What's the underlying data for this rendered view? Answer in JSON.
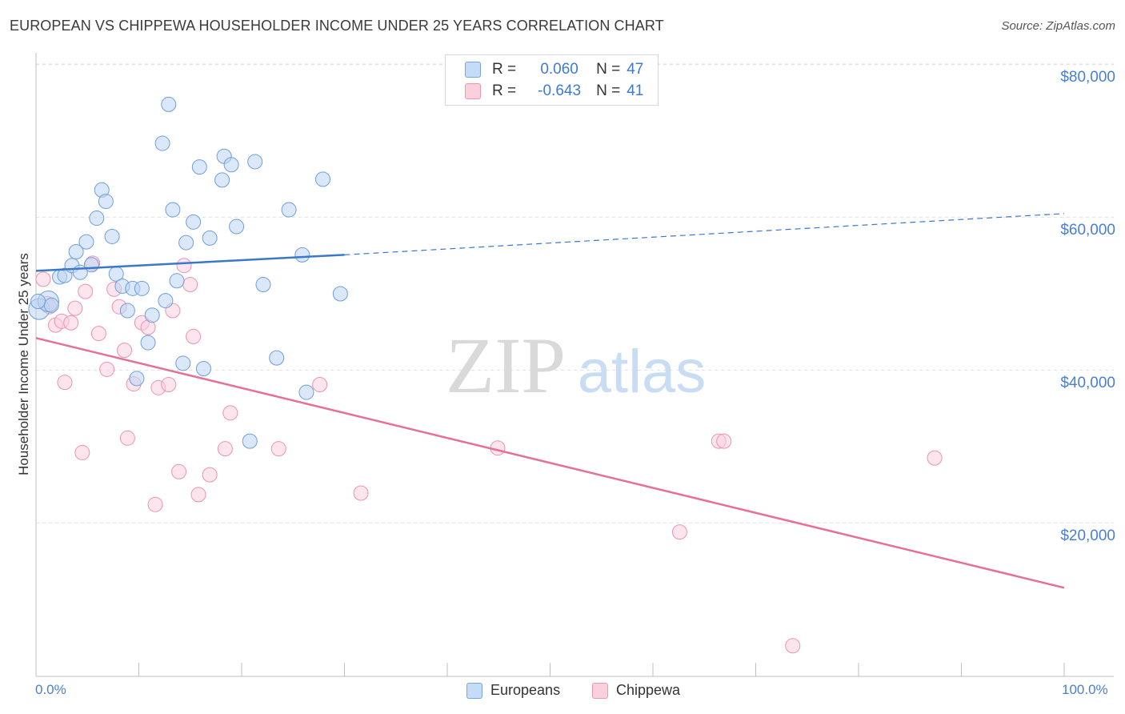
{
  "title": "EUROPEAN VS CHIPPEWA HOUSEHOLDER INCOME UNDER 25 YEARS CORRELATION CHART",
  "source": "Source: ZipAtlas.com",
  "watermark": {
    "zip": "ZIP",
    "atlas": "atlas"
  },
  "colors": {
    "europeans": "#a8c8f0",
    "europeans_line": "#3a78c9",
    "chippewa": "#f5b5c8",
    "chippewa_line": "#e66f97",
    "tick_text": "#4a7fd0"
  },
  "legend": {
    "rows": [
      {
        "r_label": "R =",
        "r_value": "0.060",
        "n_label": "N =",
        "n_value": "47"
      },
      {
        "r_label": "R =",
        "r_value": "-0.643",
        "n_label": "N =",
        "n_value": "41"
      }
    ]
  },
  "bottom_legend": {
    "europeans": "Europeans",
    "chippewa": "Chippewa"
  },
  "chart_data": {
    "type": "scatter",
    "title": "EUROPEAN VS CHIPPEWA HOUSEHOLDER INCOME UNDER 25 YEARS CORRELATION CHART",
    "xlabel": "",
    "ylabel": "Householder Income Under 25 years",
    "xlim": [
      0,
      100
    ],
    "ylim": [
      0,
      85000
    ],
    "x_tick_labels": [
      "0.0%",
      "100.0%"
    ],
    "y_ticks": [
      20000,
      40000,
      60000,
      80000
    ],
    "y_tick_labels": [
      "$20,000",
      "$40,000",
      "$60,000",
      "$80,000"
    ],
    "grid": true,
    "series": [
      {
        "name": "Europeans",
        "r": 0.06,
        "n": 47,
        "trend": {
          "x": [
            0,
            30
          ],
          "y": [
            53000,
            55100
          ],
          "dashed_to": [
            100,
            60500
          ]
        },
        "points": [
          {
            "x": 0.3,
            "y": 48000,
            "big": true
          },
          {
            "x": 1.2,
            "y": 49000,
            "big": true
          },
          {
            "x": 1.5,
            "y": 48500
          },
          {
            "x": 2.3,
            "y": 52200
          },
          {
            "x": 2.8,
            "y": 52400
          },
          {
            "x": 3.5,
            "y": 53700
          },
          {
            "x": 3.9,
            "y": 55500
          },
          {
            "x": 4.3,
            "y": 52800
          },
          {
            "x": 4.9,
            "y": 56800
          },
          {
            "x": 5.4,
            "y": 53800
          },
          {
            "x": 5.9,
            "y": 59900
          },
          {
            "x": 6.4,
            "y": 63600
          },
          {
            "x": 6.8,
            "y": 62100
          },
          {
            "x": 7.4,
            "y": 57500
          },
          {
            "x": 7.8,
            "y": 52600
          },
          {
            "x": 8.4,
            "y": 51000
          },
          {
            "x": 8.9,
            "y": 47800
          },
          {
            "x": 9.4,
            "y": 50700
          },
          {
            "x": 9.8,
            "y": 38900
          },
          {
            "x": 10.3,
            "y": 50700
          },
          {
            "x": 10.9,
            "y": 43600
          },
          {
            "x": 11.3,
            "y": 47200
          },
          {
            "x": 12.3,
            "y": 69700
          },
          {
            "x": 12.6,
            "y": 49100
          },
          {
            "x": 12.9,
            "y": 74800
          },
          {
            "x": 13.3,
            "y": 61000
          },
          {
            "x": 13.7,
            "y": 51700
          },
          {
            "x": 14.3,
            "y": 40900
          },
          {
            "x": 14.6,
            "y": 56700
          },
          {
            "x": 15.3,
            "y": 59400
          },
          {
            "x": 15.9,
            "y": 66600
          },
          {
            "x": 16.3,
            "y": 40200
          },
          {
            "x": 16.9,
            "y": 57300
          },
          {
            "x": 18.1,
            "y": 64900
          },
          {
            "x": 18.3,
            "y": 68000
          },
          {
            "x": 19.0,
            "y": 66900
          },
          {
            "x": 19.5,
            "y": 58800
          },
          {
            "x": 20.8,
            "y": 30700
          },
          {
            "x": 21.3,
            "y": 67300
          },
          {
            "x": 22.1,
            "y": 51200
          },
          {
            "x": 23.4,
            "y": 41600
          },
          {
            "x": 24.6,
            "y": 61000
          },
          {
            "x": 25.9,
            "y": 55100
          },
          {
            "x": 26.3,
            "y": 37100
          },
          {
            "x": 27.9,
            "y": 65000
          },
          {
            "x": 29.6,
            "y": 50000
          },
          {
            "x": 0.2,
            "y": 49000
          }
        ]
      },
      {
        "name": "Chippewa",
        "r": -0.643,
        "n": 41,
        "trend": {
          "x": [
            0,
            100
          ],
          "y": [
            44200,
            11500
          ]
        },
        "points": [
          {
            "x": 0.7,
            "y": 51900
          },
          {
            "x": 1.1,
            "y": 48700
          },
          {
            "x": 1.3,
            "y": 48300
          },
          {
            "x": 1.9,
            "y": 45900
          },
          {
            "x": 2.5,
            "y": 46400
          },
          {
            "x": 2.8,
            "y": 38400
          },
          {
            "x": 3.4,
            "y": 46200
          },
          {
            "x": 3.8,
            "y": 48100
          },
          {
            "x": 4.5,
            "y": 29200
          },
          {
            "x": 4.8,
            "y": 50300
          },
          {
            "x": 5.5,
            "y": 54000
          },
          {
            "x": 6.1,
            "y": 44800
          },
          {
            "x": 6.9,
            "y": 40100
          },
          {
            "x": 7.6,
            "y": 50600
          },
          {
            "x": 8.1,
            "y": 48300
          },
          {
            "x": 8.6,
            "y": 42600
          },
          {
            "x": 8.9,
            "y": 31100
          },
          {
            "x": 9.5,
            "y": 38200
          },
          {
            "x": 10.3,
            "y": 46200
          },
          {
            "x": 10.9,
            "y": 45600
          },
          {
            "x": 11.6,
            "y": 22400
          },
          {
            "x": 11.9,
            "y": 37700
          },
          {
            "x": 12.9,
            "y": 38100
          },
          {
            "x": 13.3,
            "y": 47800
          },
          {
            "x": 13.9,
            "y": 26700
          },
          {
            "x": 14.4,
            "y": 53700
          },
          {
            "x": 15.0,
            "y": 51200
          },
          {
            "x": 15.3,
            "y": 44400
          },
          {
            "x": 15.8,
            "y": 23700
          },
          {
            "x": 16.9,
            "y": 26300
          },
          {
            "x": 18.4,
            "y": 29700
          },
          {
            "x": 18.9,
            "y": 34400
          },
          {
            "x": 23.6,
            "y": 29700
          },
          {
            "x": 27.6,
            "y": 38100
          },
          {
            "x": 31.6,
            "y": 23900
          },
          {
            "x": 44.9,
            "y": 29800
          },
          {
            "x": 62.6,
            "y": 18800
          },
          {
            "x": 66.4,
            "y": 30700
          },
          {
            "x": 66.9,
            "y": 30700
          },
          {
            "x": 73.6,
            "y": 3900
          },
          {
            "x": 87.4,
            "y": 28500
          }
        ]
      }
    ]
  }
}
